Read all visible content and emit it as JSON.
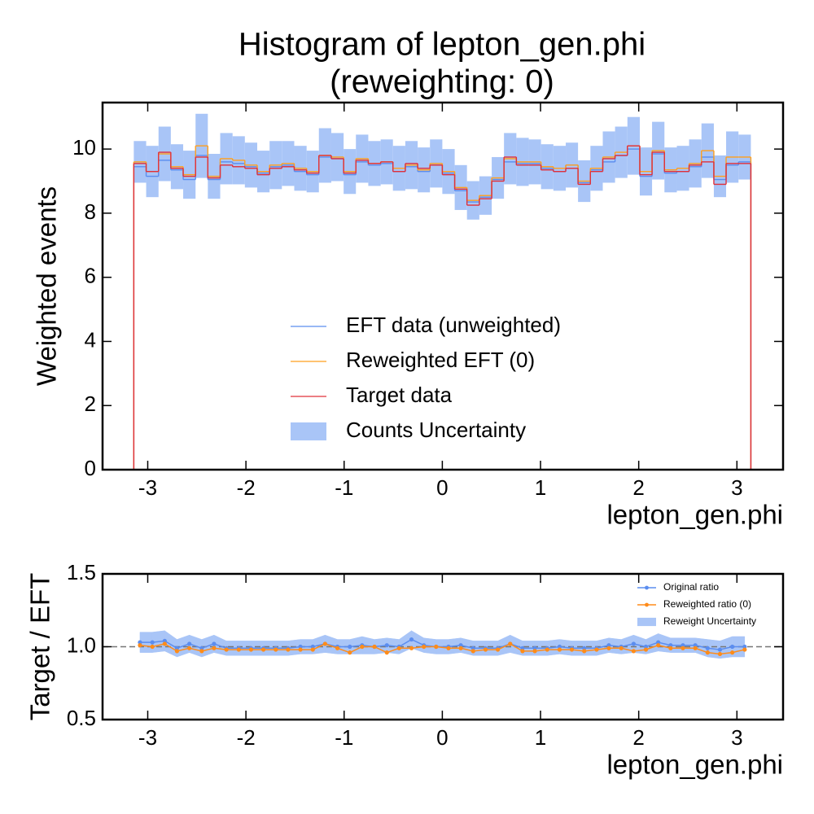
{
  "chart_data": [
    {
      "type": "histogram",
      "title": "Histogram of lepton_gen.phi",
      "subtitle": "(reweighting: 0)",
      "x_label": "lepton_gen.phi",
      "y_label": "Weighted events",
      "xlim": [
        -3.46,
        3.47
      ],
      "ylim": [
        0,
        11.45
      ],
      "xticks": [
        -3,
        -2,
        -1,
        0,
        1,
        2,
        3
      ],
      "yticks": [
        0,
        2,
        4,
        6,
        8,
        10
      ],
      "legend": "lower center",
      "bins": [
        -3.142,
        -3.016,
        -2.89,
        -2.765,
        -2.639,
        -2.513,
        -2.388,
        -2.262,
        -2.136,
        -2.011,
        -1.885,
        -1.759,
        -1.634,
        -1.508,
        -1.382,
        -1.257,
        -1.131,
        -1.005,
        -0.88,
        -0.754,
        -0.628,
        -0.503,
        -0.377,
        -0.251,
        -0.126,
        0,
        0.126,
        0.251,
        0.377,
        0.503,
        0.628,
        0.754,
        0.88,
        1.005,
        1.131,
        1.257,
        1.382,
        1.508,
        1.634,
        1.759,
        1.885,
        2.011,
        2.136,
        2.262,
        2.388,
        2.513,
        2.639,
        2.765,
        2.89,
        3.016,
        3.142
      ],
      "series": [
        {
          "name": "EFT data (unweighted)",
          "color": "#5b8def",
          "values": [
            9.45,
            9.15,
            9.65,
            9.35,
            9.05,
            9.8,
            9.05,
            9.6,
            9.55,
            9.45,
            9.25,
            9.45,
            9.5,
            9.3,
            9.2,
            9.75,
            9.7,
            9.2,
            9.6,
            9.5,
            9.55,
            9.3,
            9.45,
            9.3,
            9.5,
            9.25,
            8.7,
            8.35,
            8.5,
            9.05,
            9.6,
            9.55,
            9.55,
            9.4,
            9.3,
            9.5,
            8.95,
            9.35,
            9.6,
            9.8,
            10.0,
            9.15,
            9.85,
            9.25,
            9.3,
            9.45,
            9.75,
            9.05,
            9.5,
            9.6
          ]
        },
        {
          "name": "Reweighted EFT (0)",
          "color": "#ff9f1c",
          "values": [
            9.6,
            9.3,
            9.85,
            9.45,
            9.2,
            10.1,
            9.15,
            9.7,
            9.65,
            9.5,
            9.3,
            9.5,
            9.55,
            9.4,
            9.3,
            9.8,
            9.75,
            9.3,
            9.7,
            9.55,
            9.6,
            9.4,
            9.5,
            9.35,
            9.55,
            9.3,
            8.8,
            8.4,
            8.55,
            9.1,
            9.7,
            9.6,
            9.6,
            9.45,
            9.4,
            9.5,
            9.0,
            9.4,
            9.75,
            9.9,
            10.1,
            9.3,
            9.95,
            9.35,
            9.4,
            9.55,
            9.95,
            9.15,
            9.75,
            9.75
          ]
        },
        {
          "name": "Target data",
          "color": "#e0303a",
          "values": [
            9.55,
            9.3,
            9.9,
            9.4,
            9.15,
            9.75,
            9.1,
            9.5,
            9.45,
            9.4,
            9.2,
            9.4,
            9.45,
            9.35,
            9.25,
            9.8,
            9.7,
            9.25,
            9.65,
            9.55,
            9.6,
            9.3,
            9.55,
            9.4,
            9.5,
            9.2,
            8.75,
            8.25,
            8.45,
            9.0,
            9.75,
            9.5,
            9.5,
            9.35,
            9.3,
            9.4,
            8.9,
            9.3,
            9.7,
            9.8,
            10.1,
            9.2,
            9.9,
            9.3,
            9.3,
            9.5,
            9.6,
            8.9,
            9.55,
            9.55
          ]
        }
      ],
      "uncertainty": {
        "name": "Counts Uncertainty",
        "color": "#a9c5f7",
        "errors": [
          0.65,
          0.8,
          0.85,
          0.7,
          0.75,
          1.0,
          0.7,
          0.8,
          0.75,
          0.7,
          0.65,
          0.75,
          0.7,
          0.7,
          0.65,
          0.85,
          0.75,
          0.7,
          0.75,
          0.7,
          0.7,
          0.7,
          0.75,
          0.7,
          0.75,
          0.7,
          0.7,
          0.6,
          0.6,
          0.65,
          0.8,
          0.75,
          0.7,
          0.7,
          0.7,
          0.7,
          0.65,
          0.7,
          0.8,
          0.8,
          0.9,
          0.75,
          0.9,
          0.7,
          0.7,
          0.75,
          0.85,
          0.65,
          0.8,
          0.7
        ]
      }
    },
    {
      "type": "ratio",
      "x_label": "lepton_gen.phi",
      "y_label": "Target / EFT",
      "xlim": [
        -3.46,
        3.47
      ],
      "ylim": [
        0.5,
        1.5
      ],
      "xticks": [
        -3,
        -2,
        -1,
        0,
        1,
        2,
        3
      ],
      "yticks": [
        {
          "value": 0.5,
          "label": "0.5"
        },
        {
          "value": 1,
          "label": "1.0"
        },
        {
          "value": 1.5,
          "label": "1.5"
        }
      ],
      "legend": "upper right",
      "reference_line": 1,
      "x": [
        -3.079,
        -2.953,
        -2.827,
        -2.702,
        -2.576,
        -2.45,
        -2.325,
        -2.199,
        -2.073,
        -1.948,
        -1.822,
        -1.696,
        -1.571,
        -1.445,
        -1.319,
        -1.194,
        -1.068,
        -0.942,
        -0.817,
        -0.691,
        -0.565,
        -0.44,
        -0.314,
        -0.188,
        -0.063,
        0.063,
        0.188,
        0.314,
        0.44,
        0.565,
        0.691,
        0.817,
        0.942,
        1.068,
        1.194,
        1.319,
        1.445,
        1.571,
        1.696,
        1.822,
        1.948,
        2.073,
        2.199,
        2.325,
        2.45,
        2.576,
        2.702,
        2.827,
        2.953,
        3.079
      ],
      "series": [
        {
          "name": "Original ratio",
          "color": "#5b8def",
          "values": [
            1.03,
            1.03,
            1.04,
            0.99,
            1.02,
            0.99,
            1.02,
            0.99,
            0.99,
            0.99,
            0.99,
            0.99,
            0.99,
            1.0,
            1.0,
            1.02,
            1.0,
            1.0,
            1.01,
            1.0,
            1.01,
            1.0,
            1.05,
            1.01,
            1.0,
            1.0,
            1.01,
            0.99,
            0.99,
            0.99,
            1.02,
            0.99,
            0.99,
            0.99,
            1.0,
            0.99,
            0.99,
            0.99,
            1.01,
            1.0,
            1.02,
            1.0,
            1.03,
            1.01,
            1.01,
            1.01,
            0.99,
            0.98,
            1.0,
            1.0
          ]
        },
        {
          "name": "Reweighted ratio (0)",
          "color": "#ff8c1a",
          "values": [
            1.01,
            1.0,
            1.02,
            0.97,
            0.99,
            0.97,
            0.99,
            0.98,
            0.98,
            0.98,
            0.98,
            0.98,
            0.98,
            0.98,
            0.98,
            1.02,
            0.99,
            0.96,
            1.0,
            1.0,
            0.96,
            0.99,
            0.99,
            1.0,
            1.0,
            0.99,
            0.99,
            0.97,
            0.98,
            0.98,
            1.02,
            0.97,
            0.97,
            0.98,
            0.98,
            0.98,
            0.97,
            0.98,
            0.99,
            0.99,
            0.97,
            0.98,
            1.01,
            0.99,
            0.99,
            0.99,
            0.96,
            0.95,
            0.96,
            0.98
          ]
        }
      ],
      "uncertainty": {
        "name": "Reweight Uncertainty",
        "color": "#a9c5f7",
        "errors": [
          0.07,
          0.07,
          0.07,
          0.06,
          0.06,
          0.06,
          0.06,
          0.05,
          0.05,
          0.05,
          0.05,
          0.05,
          0.05,
          0.05,
          0.05,
          0.06,
          0.05,
          0.05,
          0.06,
          0.05,
          0.05,
          0.05,
          0.06,
          0.05,
          0.05,
          0.05,
          0.05,
          0.05,
          0.05,
          0.05,
          0.06,
          0.05,
          0.05,
          0.05,
          0.05,
          0.05,
          0.05,
          0.05,
          0.05,
          0.05,
          0.06,
          0.05,
          0.06,
          0.05,
          0.05,
          0.05,
          0.06,
          0.06,
          0.07,
          0.07
        ]
      }
    }
  ]
}
